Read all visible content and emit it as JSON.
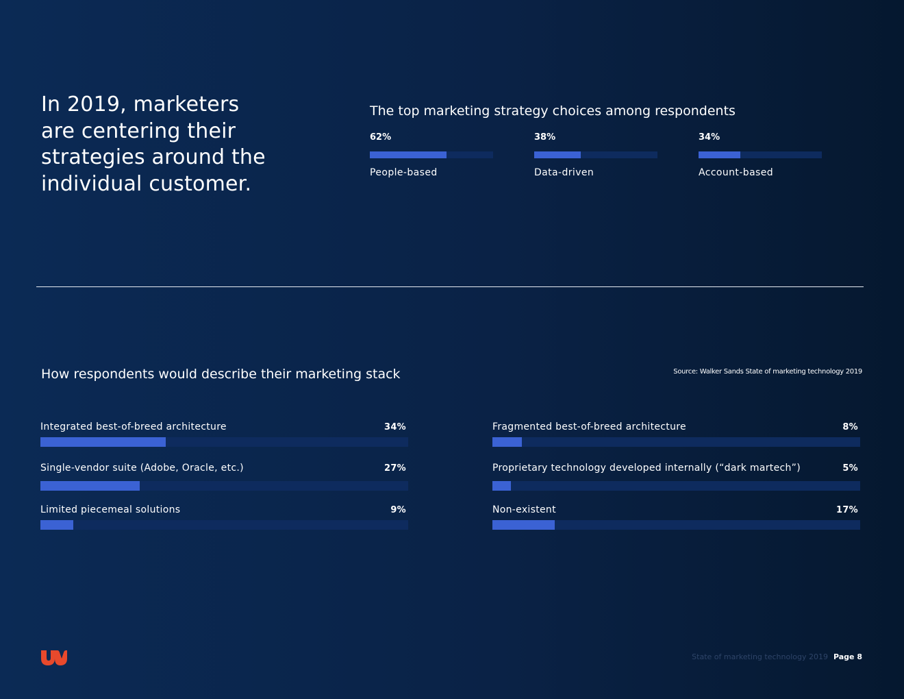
{
  "headline": "In 2019, marketers are centering their strategies around the individual customer.",
  "top_chart": {
    "title": "The top marketing strategy choices among respondents",
    "items": [
      {
        "pct_label": "62%",
        "label": "People-based",
        "value": 0.62
      },
      {
        "pct_label": "38%",
        "label": "Data-driven",
        "value": 0.38
      },
      {
        "pct_label": "34%",
        "label": "Account-based",
        "value": 0.34
      }
    ]
  },
  "stack_chart": {
    "title": "How respondents would describe their marketing stack",
    "source": "Source: Walker Sands State of marketing technology 2019",
    "items": [
      {
        "label": "Integrated best-of-breed architecture",
        "pct_label": "34%",
        "value": 0.34
      },
      {
        "label": "Single-vendor suite (Adobe, Oracle, etc.)",
        "pct_label": "27%",
        "value": 0.27
      },
      {
        "label": "Limited piecemeal solutions",
        "pct_label": "9%",
        "value": 0.09
      },
      {
        "label": "Fragmented best-of-breed architecture",
        "pct_label": "8%",
        "value": 0.08
      },
      {
        "label": "Proprietary technology developed internally (“dark martech”)",
        "pct_label": "5%",
        "value": 0.05
      },
      {
        "label": "Non-existent",
        "pct_label": "17%",
        "value": 0.17
      }
    ]
  },
  "footer": {
    "doc_title": "State of marketing technology 2019",
    "page": "Page 8"
  },
  "colors": {
    "bar_fill": "#3b62d4",
    "bar_track": "#0e2b5e",
    "logo": "#e8492c"
  },
  "logo_icon": "walker-sands-logo-icon"
}
